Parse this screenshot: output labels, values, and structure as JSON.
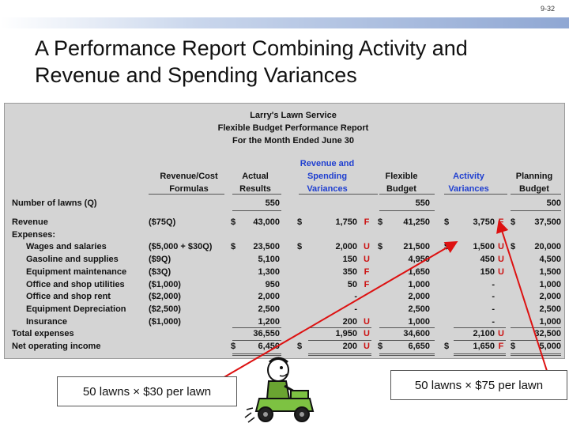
{
  "slide_number": "9-32",
  "title": "A Performance Report Combining Activity and Revenue and Spending Variances",
  "report": {
    "company": "Larry's Lawn Service",
    "report_name": "Flexible Budget Performance Report",
    "period": "For the Month Ended June 30",
    "headers": {
      "formulas": "Revenue/Cost Formulas",
      "actual": "Actual Results",
      "rs_var": "Revenue and Spending Variances",
      "flexible": "Flexible Budget",
      "act_var": "Activity Variances",
      "planning": "Planning Budget"
    },
    "lawns": {
      "label": "Number of lawns (Q)",
      "actual": "550",
      "flexible": "550",
      "planning": "500"
    },
    "revenue": {
      "label": "Revenue",
      "formula": "($75Q)",
      "actual": "43,000",
      "rs": "1,750",
      "rs_f": "F",
      "flex": "41,250",
      "act": "3,750",
      "act_f": "F",
      "plan": "37,500"
    },
    "expenses_label": "Expenses:",
    "expenses": [
      {
        "label": "Wages and salaries",
        "formula": "($5,000 + $30Q)",
        "actual": "23,500",
        "rs": "2,000",
        "rs_f": "U",
        "flex": "21,500",
        "act": "1,500",
        "act_f": "U",
        "plan": "20,000"
      },
      {
        "label": "Gasoline and supplies",
        "formula": "($9Q)",
        "actual": "5,100",
        "rs": "150",
        "rs_f": "U",
        "flex": "4,950",
        "act": "450",
        "act_f": "U",
        "plan": "4,500"
      },
      {
        "label": "Equipment maintenance",
        "formula": "($3Q)",
        "actual": "1,300",
        "rs": "350",
        "rs_f": "F",
        "flex": "1,650",
        "act": "150",
        "act_f": "U",
        "plan": "1,500"
      },
      {
        "label": "Office and shop utilities",
        "formula": "($1,000)",
        "actual": "950",
        "rs": "50",
        "rs_f": "F",
        "flex": "1,000",
        "act": "-",
        "act_f": "",
        "plan": "1,000"
      },
      {
        "label": "Office and shop rent",
        "formula": "($2,000)",
        "actual": "2,000",
        "rs": "-",
        "rs_f": "",
        "flex": "2,000",
        "act": "-",
        "act_f": "",
        "plan": "2,000"
      },
      {
        "label": "Equipment Depreciation",
        "formula": "($2,500)",
        "actual": "2,500",
        "rs": "-",
        "rs_f": "",
        "flex": "2,500",
        "act": "-",
        "act_f": "",
        "plan": "2,500"
      },
      {
        "label": "Insurance",
        "formula": "($1,000)",
        "actual": "1,200",
        "rs": "200",
        "rs_f": "U",
        "flex": "1,000",
        "act": "-",
        "act_f": "",
        "plan": "1,000"
      }
    ],
    "total": {
      "label": "Total expenses",
      "actual": "36,550",
      "rs": "1,950",
      "rs_f": "U",
      "flex": "34,600",
      "act": "2,100",
      "act_f": "U",
      "plan": "32,500"
    },
    "noi": {
      "label": "Net operating income",
      "actual": "6,450",
      "rs": "200",
      "rs_f": "U",
      "flex": "6,650",
      "act": "1,650",
      "act_f": "F",
      "plan": "5,000"
    },
    "dollar": "$"
  },
  "callouts": {
    "left": "50 lawns × $30 per lawn",
    "right": "50 lawns × $75 per lawn"
  },
  "colors": {
    "variance_header": "#1f3fd0",
    "flag": "#cc1111",
    "arrow": "#dd1111"
  }
}
